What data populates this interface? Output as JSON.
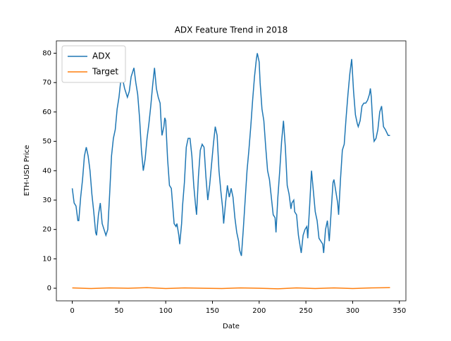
{
  "chart_data": {
    "type": "line",
    "title": "ADX Feature Trend in 2018",
    "x_label": "Date",
    "y_label": "ETH-USD Price",
    "xlim": [
      -17,
      357
    ],
    "xticks": [
      0,
      50,
      100,
      150,
      200,
      250,
      300,
      350
    ],
    "ylim": [
      -4.3,
      84.2
    ],
    "yticks": [
      0,
      10,
      20,
      30,
      40,
      50,
      60,
      70,
      80
    ],
    "grid": false,
    "legend": "upper left",
    "series": [
      {
        "name": "ADX",
        "color": "#1f77b4",
        "x": [
          0,
          2,
          4,
          6,
          7,
          9,
          11,
          13,
          15,
          17,
          19,
          21,
          23,
          25,
          26,
          28,
          30,
          32,
          34,
          36,
          38,
          40,
          42,
          44,
          46,
          48,
          50,
          52,
          54,
          56,
          58,
          59,
          61,
          63,
          66,
          68,
          70,
          72,
          74,
          76,
          78,
          80,
          82,
          84,
          86,
          88,
          90,
          92,
          94,
          95,
          96,
          98,
          99,
          100,
          102,
          104,
          106,
          108,
          109,
          111,
          112,
          114,
          115,
          117,
          118,
          120,
          122,
          124,
          126,
          128,
          130,
          132,
          133,
          135,
          137,
          139,
          141,
          143,
          145,
          147,
          149,
          151,
          153,
          155,
          157,
          159,
          161,
          162,
          164,
          166,
          168,
          170,
          172,
          174,
          176,
          178,
          179,
          181,
          183,
          185,
          187,
          189,
          191,
          193,
          195,
          197,
          198,
          200,
          201,
          203,
          205,
          207,
          209,
          211,
          213,
          215,
          217,
          218,
          220,
          222,
          224,
          226,
          228,
          230,
          232,
          234,
          235,
          237,
          238,
          240,
          242,
          244,
          245,
          247,
          249,
          251,
          252,
          254,
          256,
          258,
          260,
          262,
          264,
          266,
          268,
          269,
          271,
          273,
          275,
          277,
          279,
          280,
          282,
          284,
          285,
          287,
          289,
          291,
          293,
          295,
          297,
          299,
          301,
          303,
          305,
          306,
          308,
          310,
          312,
          314,
          316,
          318,
          319,
          320,
          322,
          323,
          325,
          327,
          329,
          331,
          333,
          335,
          338,
          340
        ],
        "values": [
          34,
          29,
          28,
          23,
          23,
          31,
          37,
          45,
          48,
          45,
          40,
          32,
          26,
          19,
          18,
          25,
          29,
          22,
          20,
          18,
          20,
          32,
          45,
          51,
          54,
          61,
          65,
          71,
          71,
          68,
          66,
          65,
          67,
          72,
          75,
          70,
          66,
          58,
          47,
          40,
          44,
          51,
          56,
          62,
          69,
          75,
          68,
          65,
          63,
          57,
          52,
          55,
          58,
          57,
          44,
          35,
          34,
          26,
          22,
          21,
          22,
          18,
          15,
          22,
          28,
          36,
          48,
          51,
          51,
          45,
          35,
          28,
          25,
          38,
          47,
          49,
          48,
          38,
          30,
          35,
          42,
          49,
          55,
          52,
          40,
          33,
          27,
          22,
          29,
          35,
          31,
          34,
          31,
          24,
          19,
          16,
          13,
          11,
          20,
          30,
          40,
          47,
          55,
          64,
          72,
          78,
          80,
          77,
          70,
          61,
          57,
          48,
          40,
          37,
          31,
          25,
          24,
          19,
          31,
          40,
          50,
          57,
          48,
          35,
          32,
          27,
          29,
          30,
          26,
          25,
          18,
          14,
          12,
          18,
          20,
          21,
          17,
          28,
          40,
          33,
          26,
          23,
          17,
          16,
          15,
          12,
          20,
          23,
          16,
          26,
          36,
          37,
          33,
          29,
          25,
          37,
          47,
          49,
          58,
          66,
          73,
          78,
          67,
          59,
          56,
          55,
          57,
          62,
          63,
          63,
          64,
          66,
          68,
          65,
          53,
          50,
          51,
          54,
          60,
          62,
          55,
          54,
          52,
          52
        ]
      },
      {
        "name": "Target",
        "color": "#ff7f0e",
        "x": [
          0,
          20,
          40,
          60,
          80,
          100,
          120,
          140,
          160,
          180,
          200,
          220,
          240,
          260,
          280,
          300,
          320,
          340
        ],
        "values": [
          0.1,
          -0.1,
          0.1,
          0,
          0.2,
          -0.1,
          0.1,
          0,
          -0.1,
          0.1,
          0,
          -0.2,
          0.1,
          -0.1,
          0.1,
          -0.1,
          0.1,
          0.2
        ]
      }
    ]
  }
}
